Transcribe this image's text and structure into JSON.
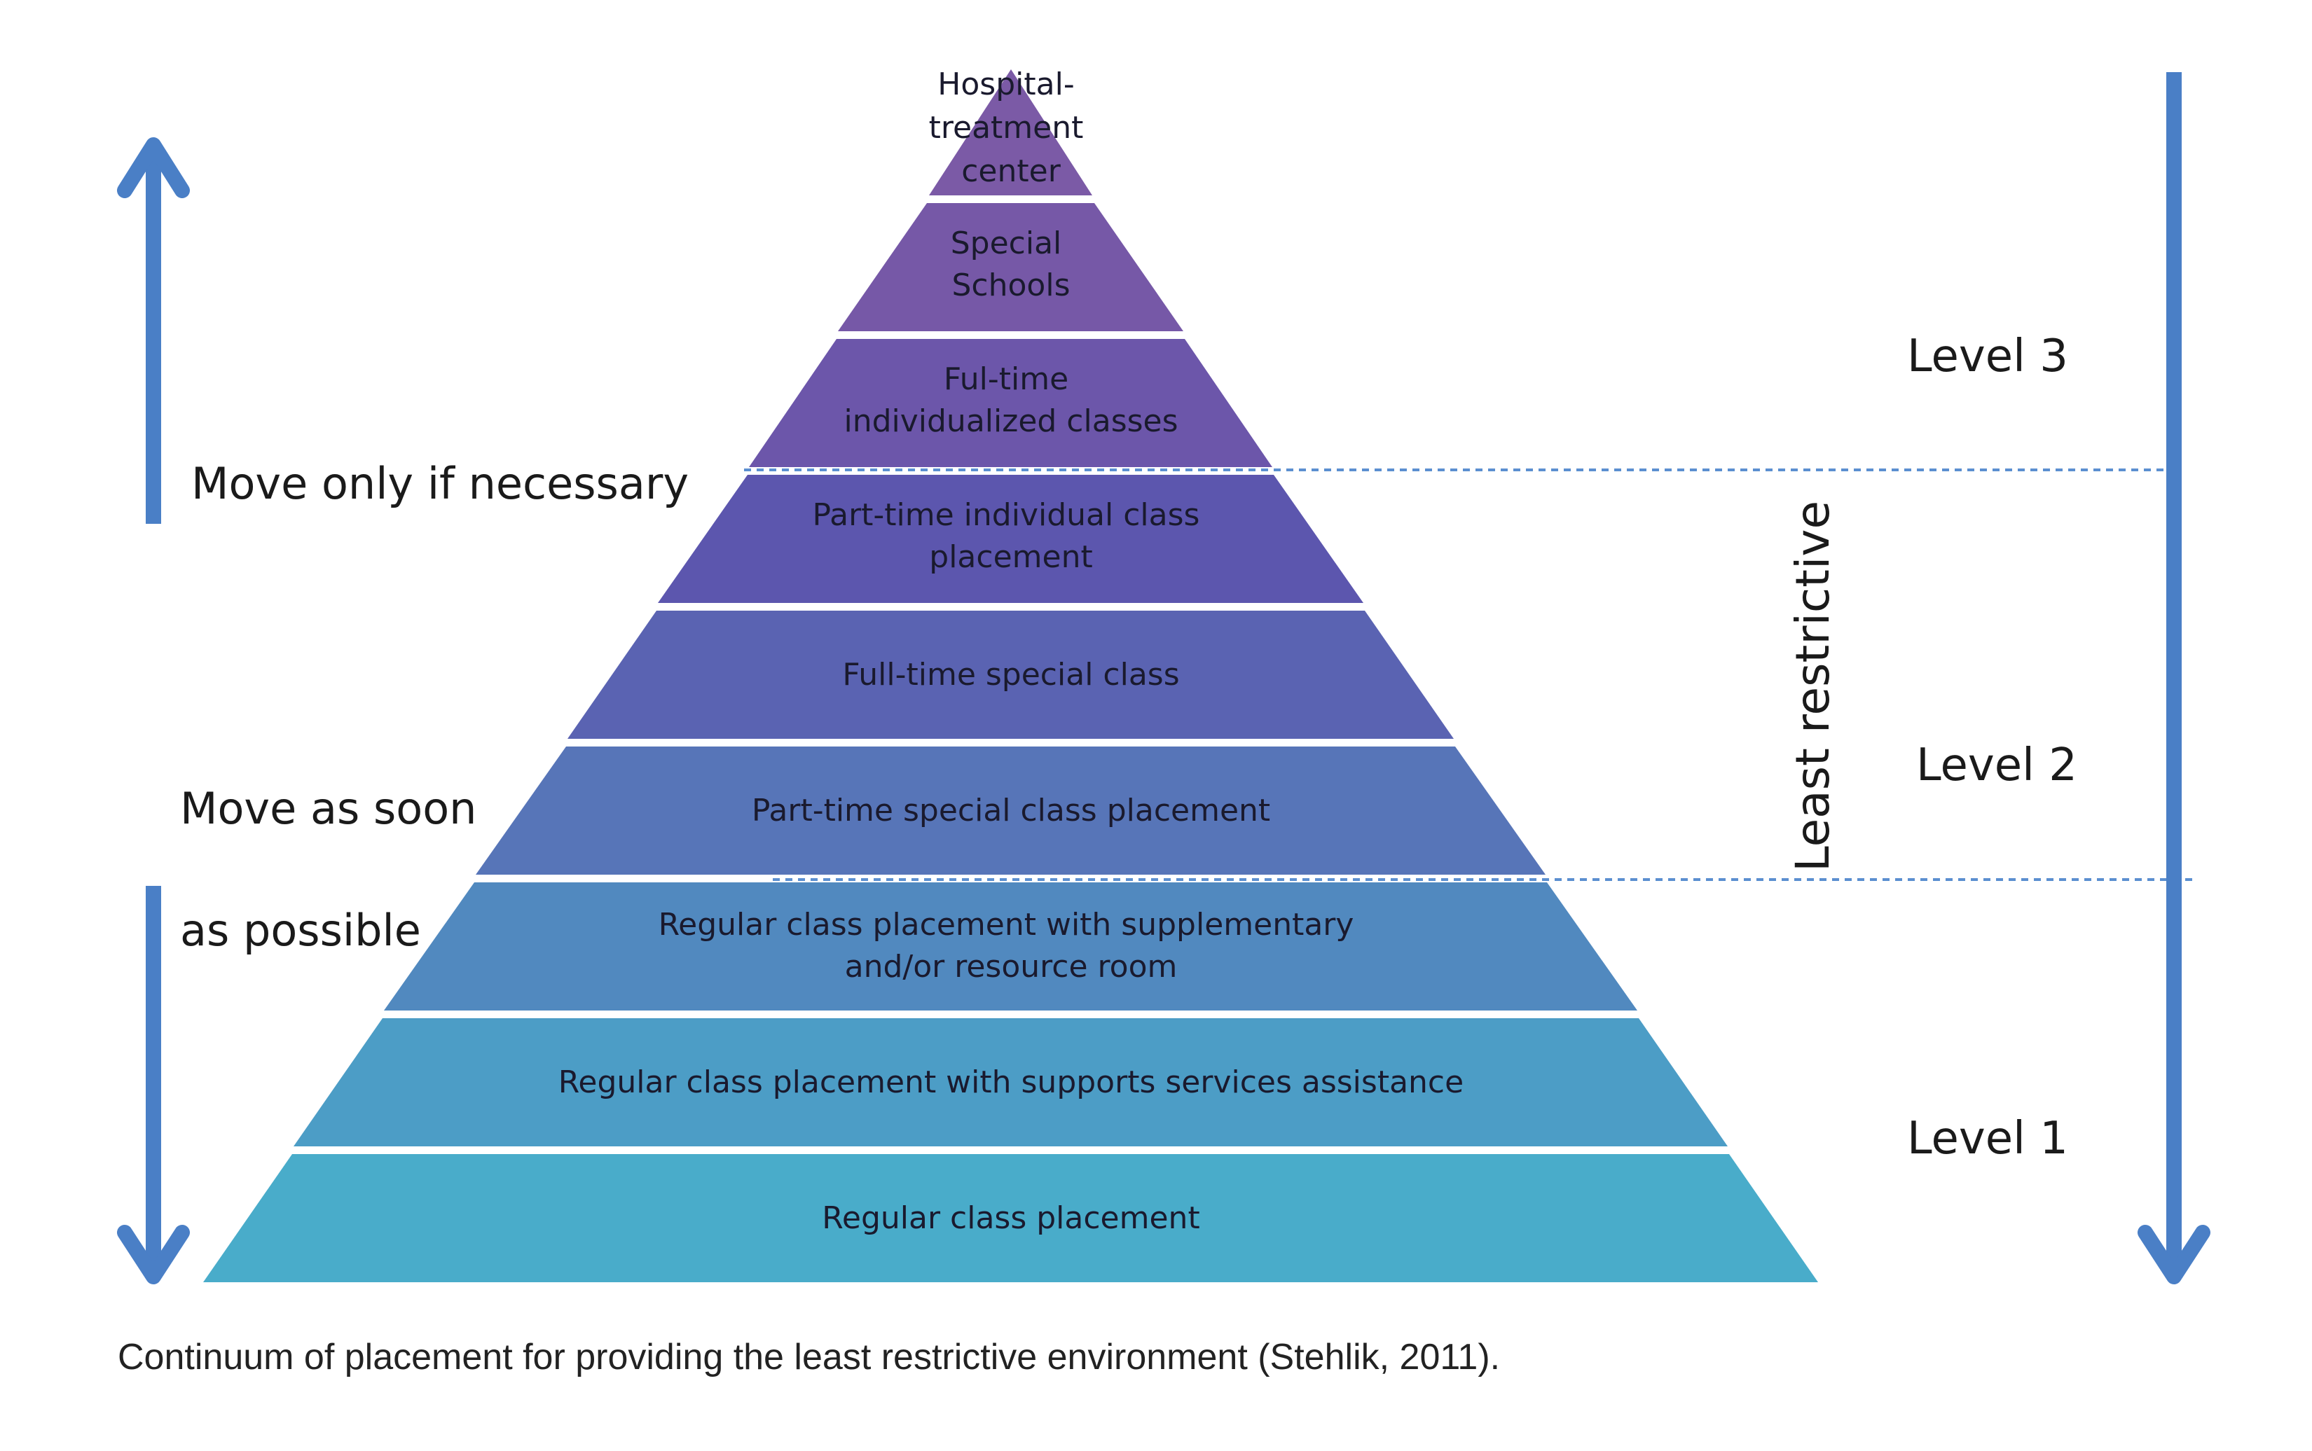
{
  "diagram": {
    "tiers": [
      {
        "id": "hospital",
        "lines": [
          "Hospital-",
          "treatment",
          "center"
        ],
        "color": "#7b5aa6"
      },
      {
        "id": "special-schools",
        "lines": [
          "Special",
          "Schools"
        ],
        "color": "#7658a7"
      },
      {
        "id": "fulltime-individualized",
        "lines": [
          "Ful-time",
          "individualized classes"
        ],
        "color": "#6c56aa"
      },
      {
        "id": "parttime-individual",
        "lines": [
          "Part-time individual class",
          "placement"
        ],
        "color": "#5c56ae"
      },
      {
        "id": "fulltime-special",
        "lines": [
          "Full-time special  class"
        ],
        "color": "#5a63b2"
      },
      {
        "id": "parttime-special",
        "lines": [
          "Part-time special class placement"
        ],
        "color": "#5775b8"
      },
      {
        "id": "regular-supplementary",
        "lines": [
          "Regular class placement with supplementary",
          "and/or resource room"
        ],
        "color": "#5189bf"
      },
      {
        "id": "regular-supports",
        "lines": [
          "Regular class placement with supports services assistance"
        ],
        "color": "#4c9dc6"
      },
      {
        "id": "regular",
        "lines": [
          "Regular class placement"
        ],
        "color": "#49acca"
      }
    ],
    "left_labels": {
      "move_up": "Move only if necessary",
      "move_down_line1": "Move as soon",
      "move_down_line2": "as possible"
    },
    "right_labels": {
      "level3": "Level 3",
      "level2": "Level 2",
      "level1": "Level 1",
      "vertical": "Least restrictive"
    },
    "caption": "Continuum of placement for providing the least restrictive environment (Stehlik, 2011).",
    "colors": {
      "arrow": "#4a7fc6",
      "dashed_line": "#5b8fd0",
      "tier_text": "#1a1a2e"
    }
  }
}
